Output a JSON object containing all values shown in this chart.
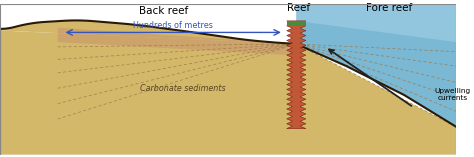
{
  "figsize": [
    4.74,
    1.57
  ],
  "dpi": 100,
  "bg_color": "#ffffff",
  "ocean_color": "#7bb8d4",
  "sand_color_light": "#d4b86a",
  "sand_color_dark": "#c8a040",
  "sediment_color": "#c8956a",
  "reef_body_color": "#c05838",
  "reef_top_color": "#4a8a3a",
  "dark_line": "#2a1a05",
  "labels": {
    "back_reef": "Back reef",
    "reef": "Reef",
    "fore_reef": "Fore reef",
    "hundreds": "Hundreds of metres",
    "carbonate": "Carbonate sediments",
    "upwelling": "Upwelling\ncurrents"
  },
  "label_fontsize": 7.5,
  "small_fontsize": 5.8
}
